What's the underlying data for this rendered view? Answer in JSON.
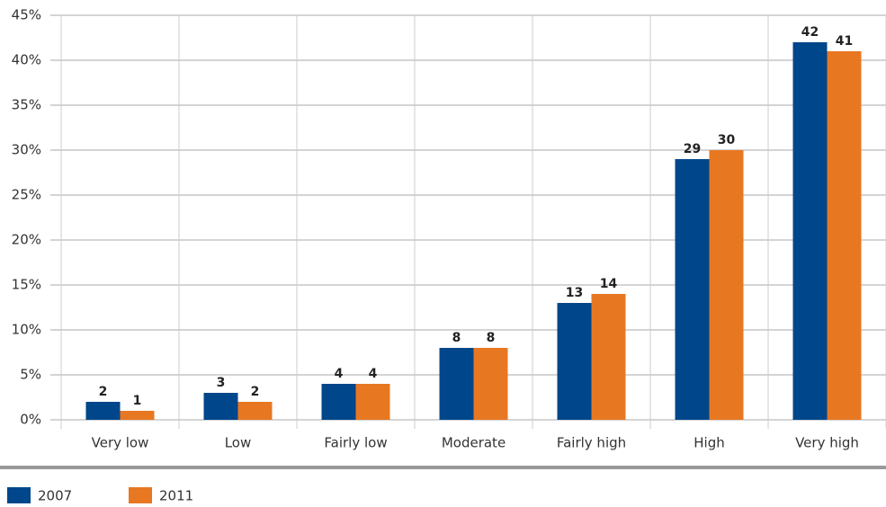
{
  "chart_data": {
    "type": "bar",
    "categories": [
      "Very low",
      "Low",
      "Fairly low",
      "Moderate",
      "Fairly high",
      "High",
      "Very high"
    ],
    "series": [
      {
        "name": "2007",
        "color": "#00468b",
        "values": [
          2,
          3,
          4,
          8,
          13,
          29,
          42
        ]
      },
      {
        "name": "2011",
        "color": "#e87722",
        "values": [
          1,
          2,
          4,
          8,
          14,
          30,
          41
        ]
      }
    ],
    "ylim": [
      0,
      45
    ],
    "yticks": [
      {
        "value": 0,
        "label": "0%"
      },
      {
        "value": 5,
        "label": "5%"
      },
      {
        "value": 10,
        "label": "10%"
      },
      {
        "value": 15,
        "label": "15%"
      },
      {
        "value": 20,
        "label": "20%"
      },
      {
        "value": 25,
        "label": "25%"
      },
      {
        "value": 30,
        "label": "30%"
      },
      {
        "value": 35,
        "label": "35%"
      },
      {
        "value": 40,
        "label": "40%"
      },
      {
        "value": 45,
        "label": "45%"
      }
    ],
    "grid": true,
    "legend": "bottom-left"
  }
}
